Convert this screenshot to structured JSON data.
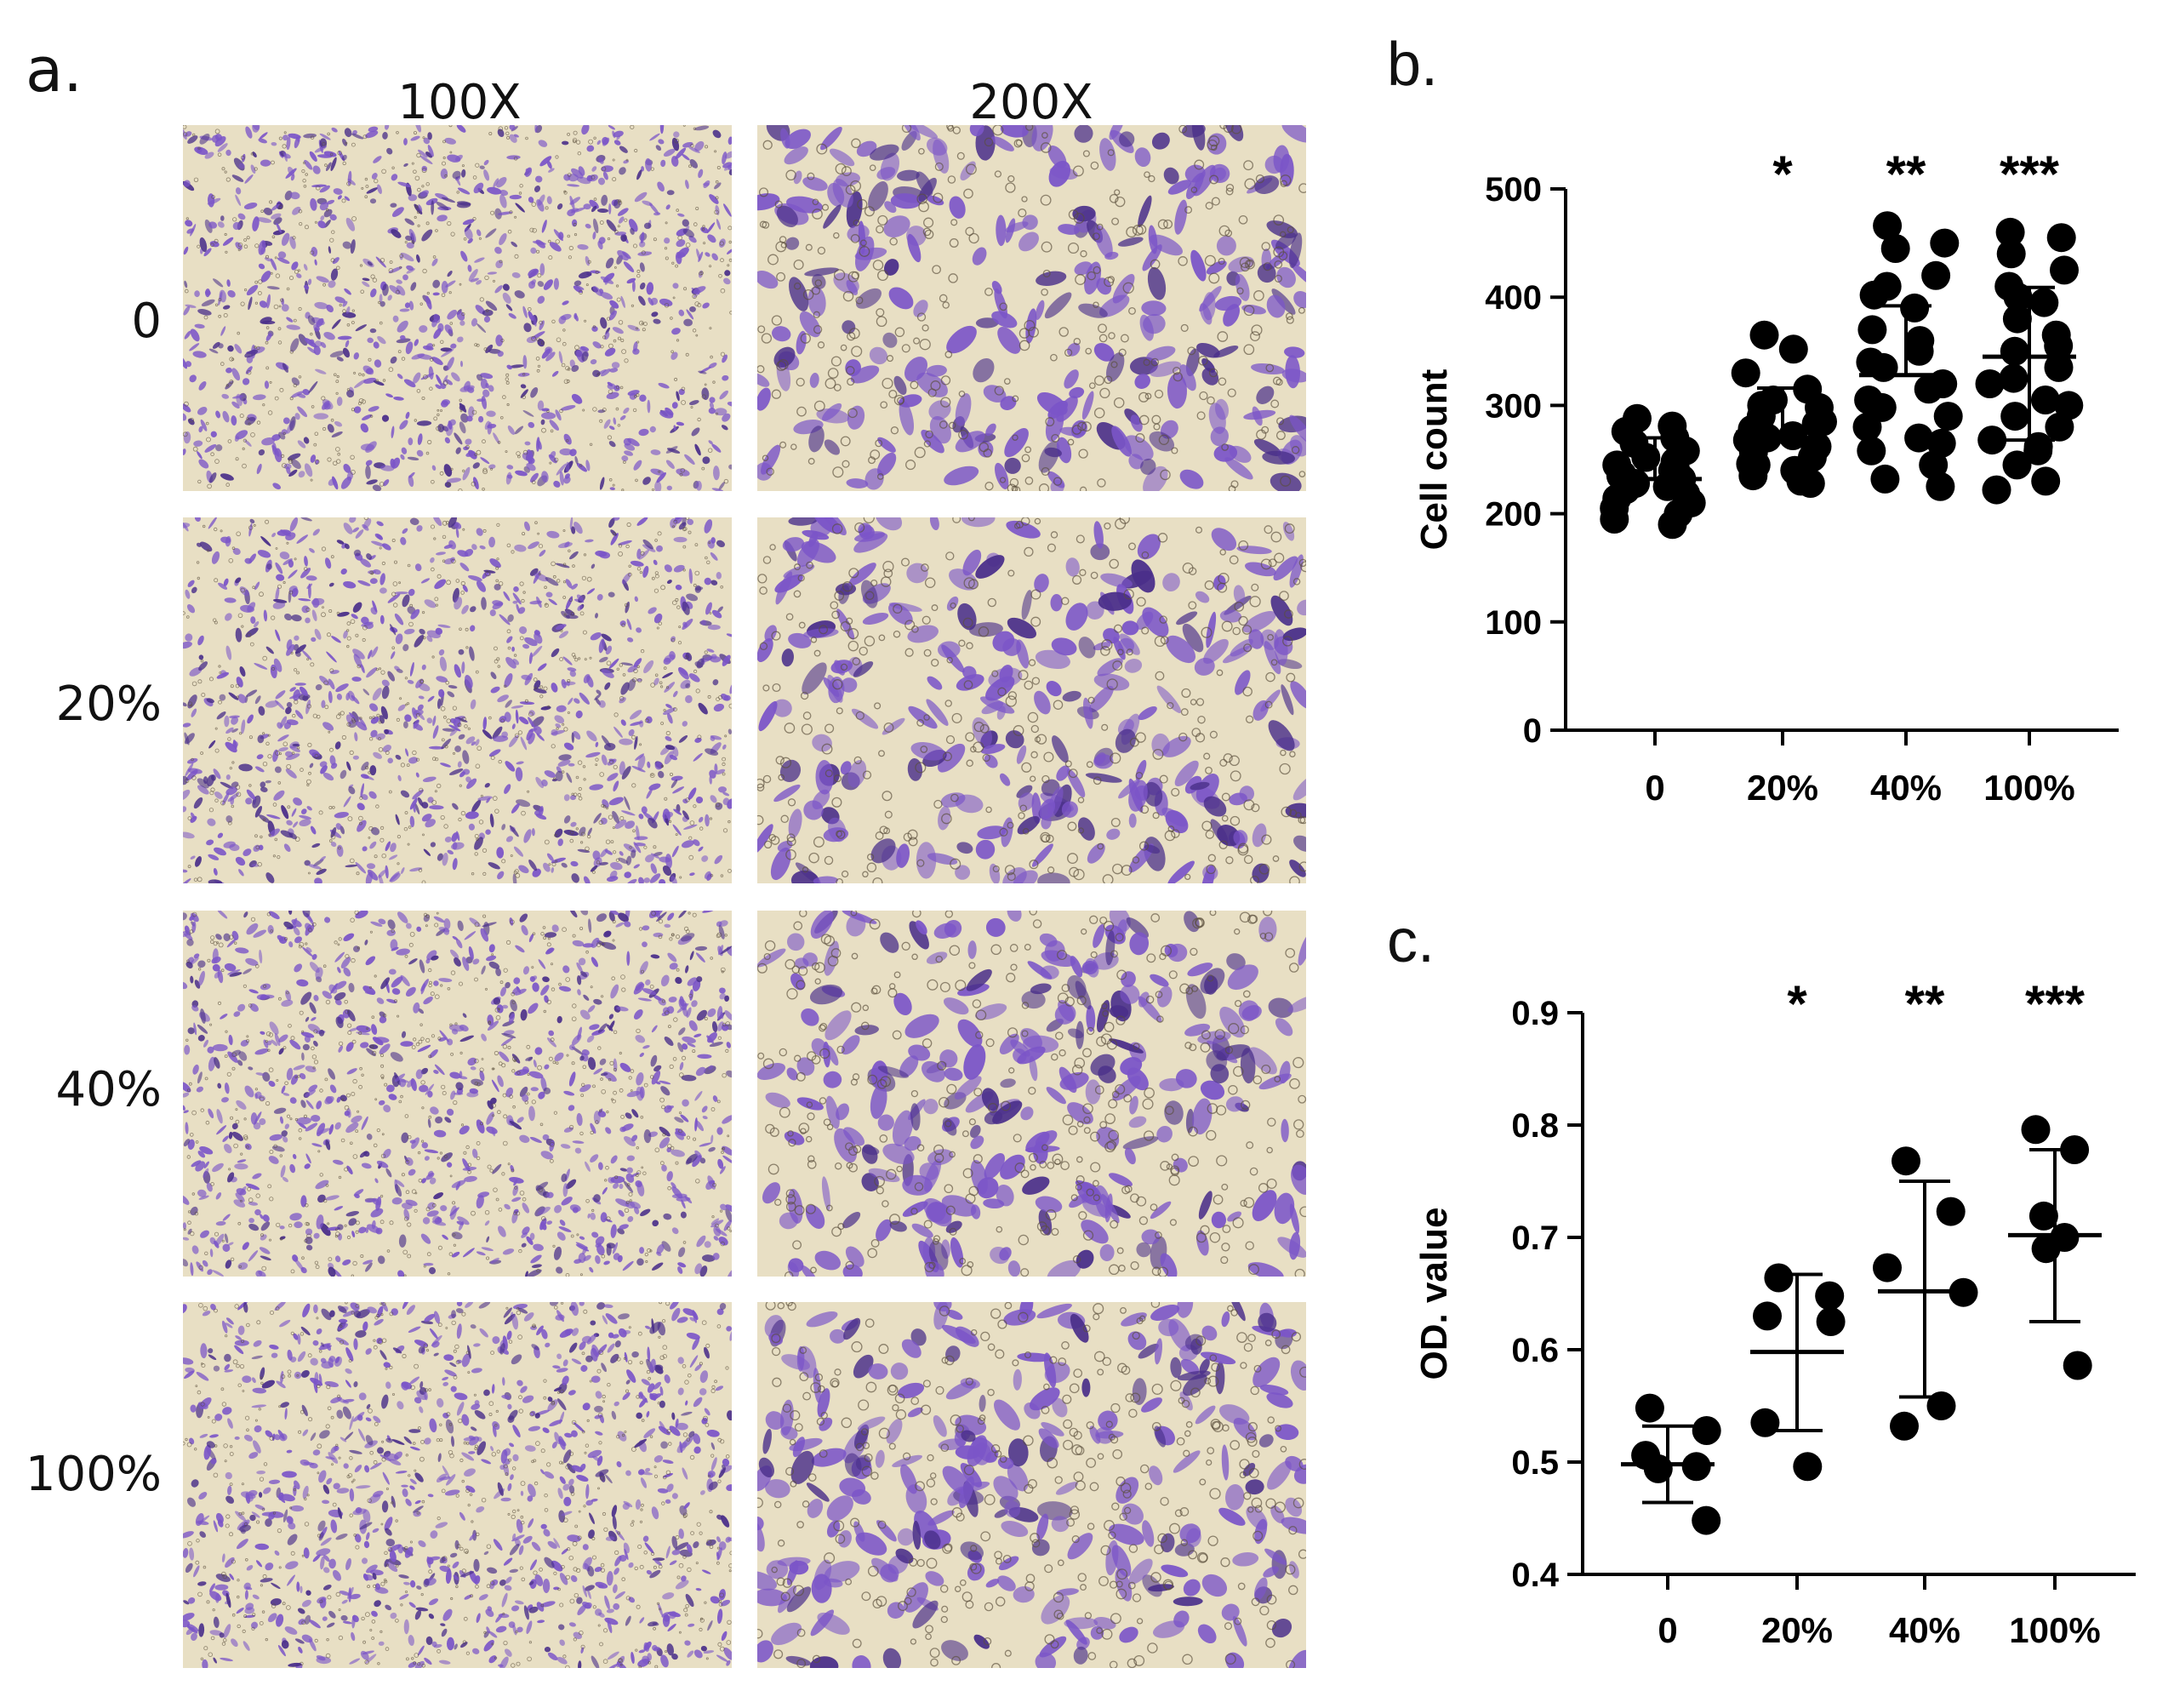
{
  "panel_a": {
    "letter": "a.",
    "columns": [
      "100X",
      "200X"
    ],
    "rows": [
      "0",
      "20%",
      "40%",
      "100%"
    ],
    "image_colors": {
      "background": "#e8dfc4",
      "stain": "#7b55c8",
      "stain_dark": "#4a2f8a",
      "debris": "#5a4f3c"
    }
  },
  "chart_data": [
    {
      "type": "scatter",
      "panel_letter": "b.",
      "title": "",
      "xlabel": "",
      "ylabel": "Cell count",
      "categories": [
        "0",
        "20%",
        "40%",
        "100%"
      ],
      "ylim": [
        0,
        500
      ],
      "yticks": [
        0,
        100,
        200,
        300,
        400,
        500
      ],
      "significance": [
        "",
        "*",
        "**",
        "***"
      ],
      "mean": [
        232,
        275,
        328,
        345
      ],
      "sd_upper": [
        270,
        316,
        392,
        409
      ],
      "sd_lower": [
        232,
        275,
        328,
        268
      ],
      "points": [
        [
          288,
          281,
          276,
          270,
          265,
          258,
          252,
          248,
          245,
          240,
          236,
          232,
          228,
          225,
          222,
          218,
          214,
          210,
          205,
          200,
          195,
          190,
          235,
          242
        ],
        [
          365,
          352,
          330,
          315,
          305,
          298,
          290,
          283,
          278,
          272,
          268,
          262,
          257,
          252,
          246,
          240,
          235,
          230,
          270,
          285,
          300,
          260,
          245,
          228
        ],
        [
          466,
          450,
          445,
          420,
          402,
          390,
          370,
          350,
          335,
          320,
          305,
          290,
          280,
          270,
          258,
          245,
          232,
          225,
          298,
          315,
          340,
          360,
          410,
          265
        ],
        [
          460,
          455,
          440,
          425,
          410,
          395,
          380,
          365,
          350,
          335,
          320,
          305,
          290,
          280,
          268,
          258,
          245,
          230,
          222,
          300,
          325,
          355,
          400,
          262
        ]
      ],
      "style": {
        "point_color": "#000000",
        "axis_color": "#000000"
      }
    },
    {
      "type": "scatter",
      "panel_letter": "c.",
      "title": "",
      "xlabel": "",
      "ylabel": "OD. value",
      "categories": [
        "0",
        "20%",
        "40%",
        "100%"
      ],
      "ylim": [
        0.4,
        0.9
      ],
      "yticks": [
        0.4,
        0.5,
        0.6,
        0.7,
        0.8,
        0.9
      ],
      "ytick_labels": [
        "0.4",
        "0.5",
        "0.6",
        "0.7",
        "0.8",
        "0.9"
      ],
      "significance": [
        "",
        "*",
        "**",
        "***"
      ],
      "mean": [
        0.498,
        0.598,
        0.652,
        0.702
      ],
      "sd_upper": [
        0.532,
        0.667,
        0.75,
        0.778
      ],
      "sd_lower": [
        0.464,
        0.528,
        0.558,
        0.625
      ],
      "points": [
        [
          0.548,
          0.528,
          0.506,
          0.496,
          0.494,
          0.448
        ],
        [
          0.664,
          0.648,
          0.63,
          0.625,
          0.535,
          0.496
        ],
        [
          0.768,
          0.723,
          0.673,
          0.651,
          0.532,
          0.55
        ],
        [
          0.796,
          0.778,
          0.719,
          0.7,
          0.69,
          0.586
        ]
      ],
      "style": {
        "point_color": "#000000",
        "axis_color": "#000000"
      }
    }
  ]
}
